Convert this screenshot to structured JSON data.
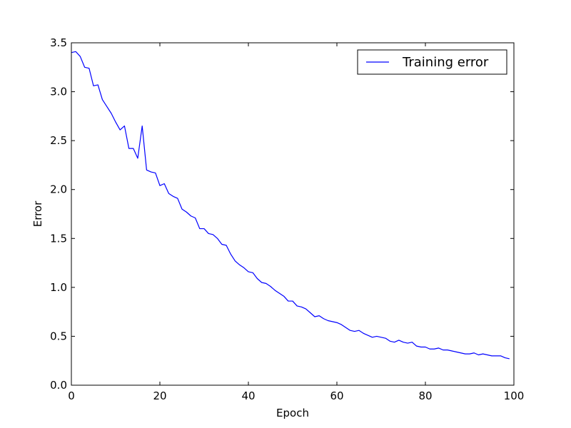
{
  "chart_data": {
    "type": "line",
    "title": "",
    "xlabel": "Epoch",
    "ylabel": "Error",
    "xlim": [
      0,
      100
    ],
    "ylim": [
      0.0,
      3.5
    ],
    "xticks": [
      0,
      20,
      40,
      60,
      80,
      100
    ],
    "xtick_labels": [
      "0",
      "20",
      "40",
      "60",
      "80",
      "100"
    ],
    "yticks": [
      0.0,
      0.5,
      1.0,
      1.5,
      2.0,
      2.5,
      3.0,
      3.5
    ],
    "ytick_labels": [
      "0.0",
      "0.5",
      "1.0",
      "1.5",
      "2.0",
      "2.5",
      "3.0",
      "3.5"
    ],
    "grid": false,
    "legend_position": "top-right",
    "series": [
      {
        "name": "Training error",
        "color": "#0000ff",
        "x": [
          0,
          1,
          2,
          3,
          4,
          5,
          6,
          7,
          8,
          9,
          10,
          11,
          12,
          13,
          14,
          15,
          16,
          17,
          18,
          19,
          20,
          21,
          22,
          23,
          24,
          25,
          26,
          27,
          28,
          29,
          30,
          31,
          32,
          33,
          34,
          35,
          36,
          37,
          38,
          39,
          40,
          41,
          42,
          43,
          44,
          45,
          46,
          47,
          48,
          49,
          50,
          51,
          52,
          53,
          54,
          55,
          56,
          57,
          58,
          59,
          60,
          61,
          62,
          63,
          64,
          65,
          66,
          67,
          68,
          69,
          70,
          71,
          72,
          73,
          74,
          75,
          76,
          77,
          78,
          79,
          80,
          81,
          82,
          83,
          84,
          85,
          86,
          87,
          88,
          89,
          90,
          91,
          92,
          93,
          94,
          95,
          96,
          97,
          98,
          99
        ],
        "y": [
          3.4,
          3.41,
          3.36,
          3.25,
          3.24,
          3.06,
          3.07,
          2.92,
          2.85,
          2.78,
          2.69,
          2.61,
          2.65,
          2.42,
          2.42,
          2.32,
          2.65,
          2.2,
          2.18,
          2.17,
          2.04,
          2.06,
          1.96,
          1.93,
          1.91,
          1.8,
          1.77,
          1.73,
          1.71,
          1.6,
          1.6,
          1.55,
          1.54,
          1.5,
          1.44,
          1.43,
          1.34,
          1.27,
          1.23,
          1.2,
          1.16,
          1.15,
          1.09,
          1.05,
          1.04,
          1.01,
          0.97,
          0.94,
          0.91,
          0.86,
          0.86,
          0.81,
          0.8,
          0.78,
          0.74,
          0.7,
          0.71,
          0.68,
          0.66,
          0.65,
          0.64,
          0.62,
          0.59,
          0.56,
          0.55,
          0.56,
          0.53,
          0.51,
          0.49,
          0.5,
          0.49,
          0.48,
          0.45,
          0.44,
          0.46,
          0.44,
          0.43,
          0.44,
          0.4,
          0.39,
          0.39,
          0.37,
          0.37,
          0.38,
          0.36,
          0.36,
          0.35,
          0.34,
          0.33,
          0.32,
          0.32,
          0.33,
          0.31,
          0.32,
          0.31,
          0.3,
          0.3,
          0.3,
          0.28,
          0.27
        ]
      }
    ]
  }
}
